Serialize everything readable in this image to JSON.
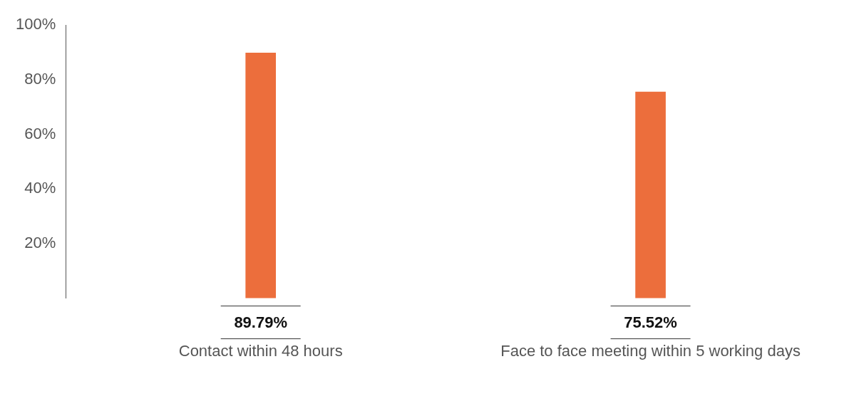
{
  "chart_data": {
    "type": "bar",
    "categories": [
      "Contact within 48 hours",
      "Face to face meeting within 5 working days"
    ],
    "values": [
      89.79,
      75.52
    ],
    "color": "#ec6e3c",
    "ylim": [
      0,
      100
    ],
    "yticks": [
      {
        "value": 20,
        "label": "20%"
      },
      {
        "value": 40,
        "label": "40%"
      },
      {
        "value": 60,
        "label": "60%"
      },
      {
        "value": 80,
        "label": "80%"
      },
      {
        "value": 100,
        "label": "100%"
      }
    ],
    "value_labels": [
      "89.79%",
      "75.52%"
    ],
    "grid": false,
    "legend": false
  }
}
